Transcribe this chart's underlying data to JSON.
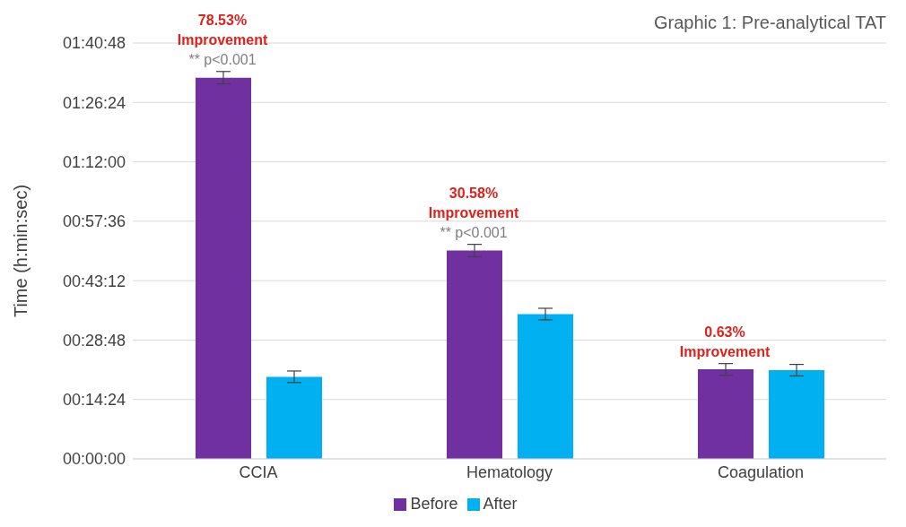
{
  "chart_data": {
    "type": "bar",
    "title": "Graphic 1: Pre-analytical TAT",
    "ylabel": "Time (h:min:sec)",
    "categories": [
      "CCIA",
      "Hematology",
      "Coagulation"
    ],
    "series": [
      {
        "name": "Before",
        "color": "#7030a0",
        "values": [
          92.4,
          50.5,
          21.7
        ],
        "errors": [
          1.5,
          1.5,
          1.4
        ]
      },
      {
        "name": "After",
        "color": "#00b0f0",
        "values": [
          19.9,
          35.1,
          21.5
        ],
        "errors": [
          1.4,
          1.4,
          1.4
        ]
      }
    ],
    "ylim": [
      0,
      100.8
    ],
    "yticks": [
      {
        "value": 0,
        "label": "00:00:00"
      },
      {
        "value": 14.4,
        "label": "00:14:24"
      },
      {
        "value": 28.8,
        "label": "00:28:48"
      },
      {
        "value": 43.2,
        "label": "00:43:12"
      },
      {
        "value": 57.6,
        "label": "00:57:36"
      },
      {
        "value": 72,
        "label": "01:12:00"
      },
      {
        "value": 86.4,
        "label": "01:26:24"
      },
      {
        "value": 100.8,
        "label": "01:40:48"
      }
    ],
    "grid": "y",
    "legend": "bottom",
    "annotations": [
      "78.53%\nImprovement",
      "** p<0.001",
      "30.58%\nImprovement",
      "** p<0.001",
      "0.63%\nImprovement"
    ]
  }
}
